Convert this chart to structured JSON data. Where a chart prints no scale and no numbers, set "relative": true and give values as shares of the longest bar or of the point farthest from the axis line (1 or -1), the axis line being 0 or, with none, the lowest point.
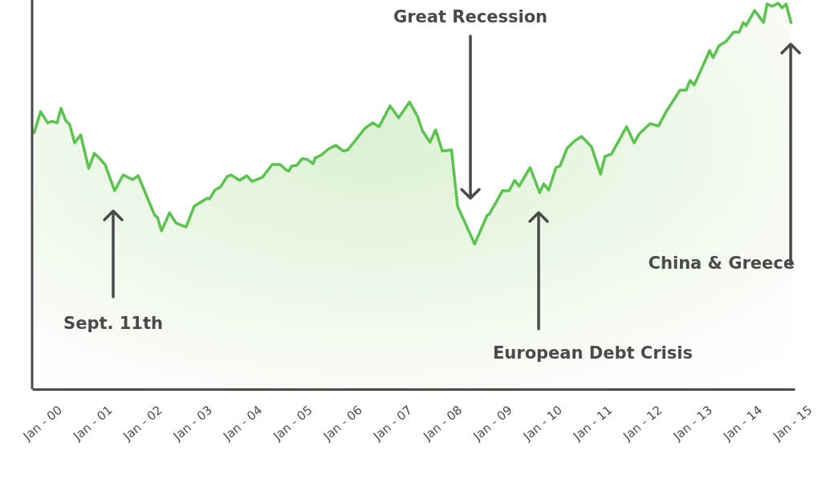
{
  "chart_data": {
    "type": "area",
    "relative": true,
    "x": [
      "1999-11-03",
      "1999-12-20",
      "2000-02-10",
      "2000-03-13",
      "2000-04-19",
      "2000-05-17",
      "2000-06-20",
      "2000-07-19",
      "2000-08-25",
      "2000-10-08",
      "2000-12-05",
      "2001-01-15",
      "2001-02-25",
      "2001-04-04",
      "2001-06-13",
      "2001-08-14",
      "2001-10-22",
      "2001-12-02",
      "2002-04-01",
      "2002-04-22",
      "2002-05-21",
      "2002-07-19",
      "2002-09-05",
      "2002-11-17",
      "2003-01-15",
      "2003-04-22",
      "2003-05-07",
      "2003-06-16",
      "2003-07-26",
      "2003-09-13",
      "2003-10-11",
      "2003-12-13",
      "2004-02-03",
      "2004-03-13",
      "2004-05-28",
      "2004-08-07",
      "2004-10-04",
      "2004-11-17",
      "2004-12-05",
      "2004-12-27",
      "2005-02-03",
      "2005-03-13",
      "2005-04-22",
      "2005-06-02",
      "2005-06-16",
      "2005-08-03",
      "2005-09-13",
      "2005-11-14",
      "2006-01-08",
      "2006-02-10",
      "2006-06-16",
      "2006-08-10",
      "2006-09-27",
      "2006-12-16",
      "2007-02-17",
      "2007-05-07",
      "2007-07-04",
      "2007-08-10",
      "2007-10-04",
      "2007-11-14",
      "2008-01-01",
      "2008-03-09",
      "2008-04-22",
      "2008-08-25",
      "2008-11-25",
      "2008-12-09",
      "2009-03-16",
      "2009-05-03",
      "2009-06-13",
      "2009-07-15",
      "2009-10-04",
      "2009-12-13",
      "2010-01-11",
      "2010-02-17",
      "2010-04-11",
      "2010-05-10",
      "2010-07-01",
      "2010-08-28",
      "2010-10-15",
      "2010-12-27",
      "2011-03-02",
      "2011-04-04",
      "2011-05-21",
      "2011-09-09",
      "2011-11-03",
      "2011-12-09",
      "2012-02-28",
      "2012-04-29",
      "2012-06-27",
      "2012-10-04",
      "2012-11-17",
      "2012-12-16",
      "2013-01-15",
      "2013-05-07",
      "2013-06-02",
      "2013-07-15",
      "2013-09-02",
      "2013-10-29",
      "2013-12-09",
      "2014-01-08",
      "2014-01-29",
      "2014-04-01",
      "2014-06-05",
      "2014-07-01",
      "2014-08-07",
      "2014-09-20",
      "2014-10-19",
      "2014-11-17",
      "2014-12-23"
    ],
    "series": [
      {
        "color": "#5bc44f",
        "values": [
          0.665,
          0.719,
          0.69,
          0.694,
          0.69,
          0.728,
          0.696,
          0.686,
          0.638,
          0.659,
          0.572,
          0.611,
          0.597,
          0.582,
          0.514,
          0.555,
          0.543,
          0.553,
          0.451,
          0.445,
          0.41,
          0.457,
          0.43,
          0.42,
          0.474,
          0.495,
          0.493,
          0.516,
          0.524,
          0.551,
          0.555,
          0.541,
          0.553,
          0.538,
          0.549,
          0.582,
          0.582,
          0.568,
          0.565,
          0.578,
          0.58,
          0.597,
          0.595,
          0.584,
          0.599,
          0.607,
          0.62,
          0.632,
          0.617,
          0.62,
          0.676,
          0.69,
          0.68,
          0.734,
          0.703,
          0.744,
          0.707,
          0.669,
          0.64,
          0.672,
          0.617,
          0.62,
          0.474,
          0.376,
          0.451,
          0.453,
          0.514,
          0.514,
          0.541,
          0.526,
          0.574,
          0.509,
          0.532,
          0.516,
          0.574,
          0.578,
          0.624,
          0.644,
          0.655,
          0.628,
          0.557,
          0.603,
          0.609,
          0.68,
          0.638,
          0.661,
          0.688,
          0.682,
          0.721,
          0.775,
          0.775,
          0.8,
          0.788,
          0.877,
          0.859,
          0.89,
          0.9,
          0.925,
          0.925,
          0.95,
          0.942,
          0.981,
          0.95,
          0.998,
          0.992,
          1,
          0.988,
          0.998,
          0.95
        ]
      }
    ],
    "xlim": [
      "1999-10-19",
      "2015-01-19"
    ],
    "xticks": [
      {
        "value": "2000-01",
        "label": "Jan - 00"
      },
      {
        "value": "2001-01",
        "label": "Jan - 01"
      },
      {
        "value": "2002-01",
        "label": "Jan - 02"
      },
      {
        "value": "2003-01",
        "label": "Jan - 03"
      },
      {
        "value": "2004-01",
        "label": "Jan - 04"
      },
      {
        "value": "2005-01",
        "label": "Jan - 05"
      },
      {
        "value": "2006-01",
        "label": "Jan - 06"
      },
      {
        "value": "2007-01",
        "label": "Jan - 07"
      },
      {
        "value": "2008-01",
        "label": "Jan - 08"
      },
      {
        "value": "2009-01",
        "label": "Jan - 09"
      },
      {
        "value": "2010-01",
        "label": "Jan - 10"
      },
      {
        "value": "2011-01",
        "label": "Jan - 11"
      },
      {
        "value": "2012-01",
        "label": "Jan - 12"
      },
      {
        "value": "2013-01",
        "label": "Jan - 13"
      },
      {
        "value": "2014-01",
        "label": "Jan - 14"
      },
      {
        "value": "2015-01",
        "label": "Jan - 15"
      }
    ],
    "annotations": [
      "Sept. 11th",
      "Great Recession",
      "European Debt Crisis",
      "China & Greece"
    ]
  }
}
